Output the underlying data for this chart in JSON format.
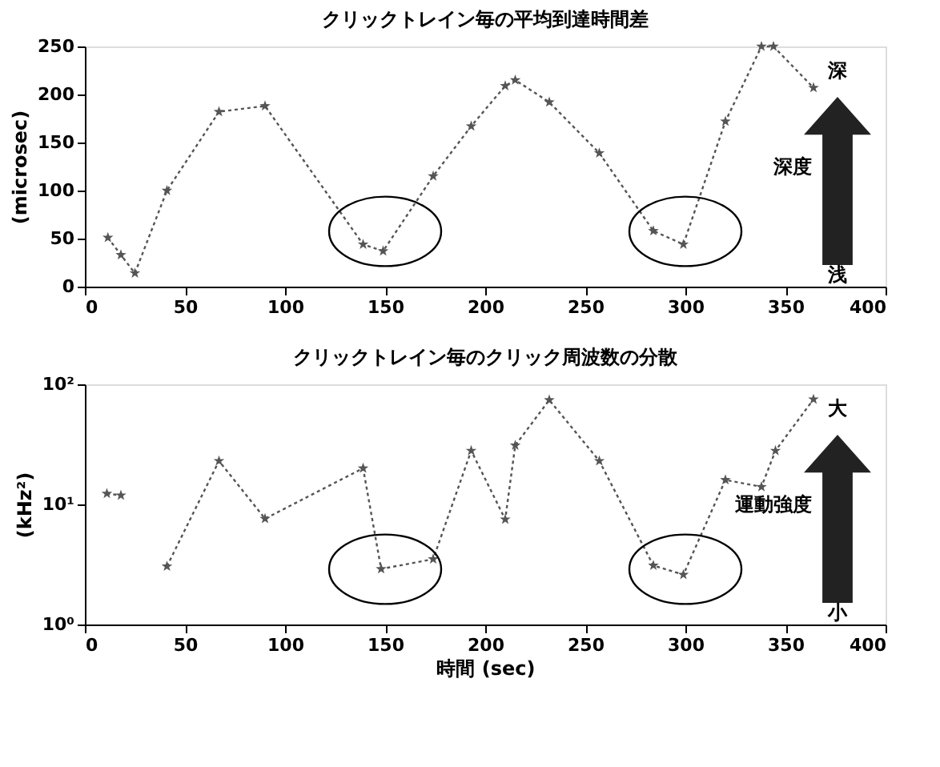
{
  "chart_data": [
    {
      "type": "line",
      "title": "クリックトレイン毎の平均到達時間差",
      "ylabel": "(microsec)",
      "marker": "star",
      "line_style": "dotted",
      "grid": false,
      "series": [
        {
          "color": "#555555",
          "x": [
            11.5,
            18,
            25,
            41,
            67,
            90,
            139,
            149,
            174,
            193,
            210,
            215,
            232,
            257,
            284,
            299,
            320,
            338,
            344,
            364
          ],
          "values": [
            51,
            33,
            14,
            100,
            182,
            188,
            44,
            37,
            115,
            167,
            209,
            215,
            192,
            139,
            58,
            44,
            172,
            250,
            250,
            207
          ]
        }
      ],
      "xlim": [
        0,
        400
      ],
      "xticks": [
        0,
        50,
        100,
        150,
        200,
        250,
        300,
        350,
        400
      ],
      "ylim": [
        0,
        250
      ],
      "yticks": [
        0,
        50,
        100,
        150,
        200,
        250
      ],
      "annotations": [
        "深",
        "深度",
        "浅"
      ]
    },
    {
      "type": "line",
      "title": "クリックトレイン毎のクリック周波数の分散",
      "xlabel": "時間 (sec)",
      "ylabel": "(kHz²)",
      "marker": "star",
      "line_style": "dotted",
      "grid": false,
      "log": "y",
      "series": [
        {
          "color": "#555555",
          "x": [
            11,
            18
          ],
          "values": [
            12.3,
            11.9
          ]
        },
        {
          "color": "#555555",
          "x": [
            41,
            67,
            90,
            139,
            148,
            174,
            193,
            210,
            215,
            232,
            257,
            284,
            299,
            320,
            338,
            345,
            364
          ],
          "values": [
            3.05,
            23,
            7.6,
            20,
            2.9,
            3.5,
            28,
            7.5,
            31,
            74,
            23,
            3.1,
            2.6,
            16,
            14,
            28,
            75
          ]
        }
      ],
      "xlim": [
        0,
        400
      ],
      "xticks": [
        0,
        50,
        100,
        150,
        200,
        250,
        300,
        350,
        400
      ],
      "ylim": [
        1,
        100
      ],
      "yticks": [
        {
          "value": 1,
          "label": "10⁰"
        },
        {
          "value": 10,
          "label": "10¹"
        },
        {
          "value": 100,
          "label": "10²"
        }
      ],
      "annotations": [
        "大",
        "運動強度",
        "小"
      ]
    }
  ]
}
